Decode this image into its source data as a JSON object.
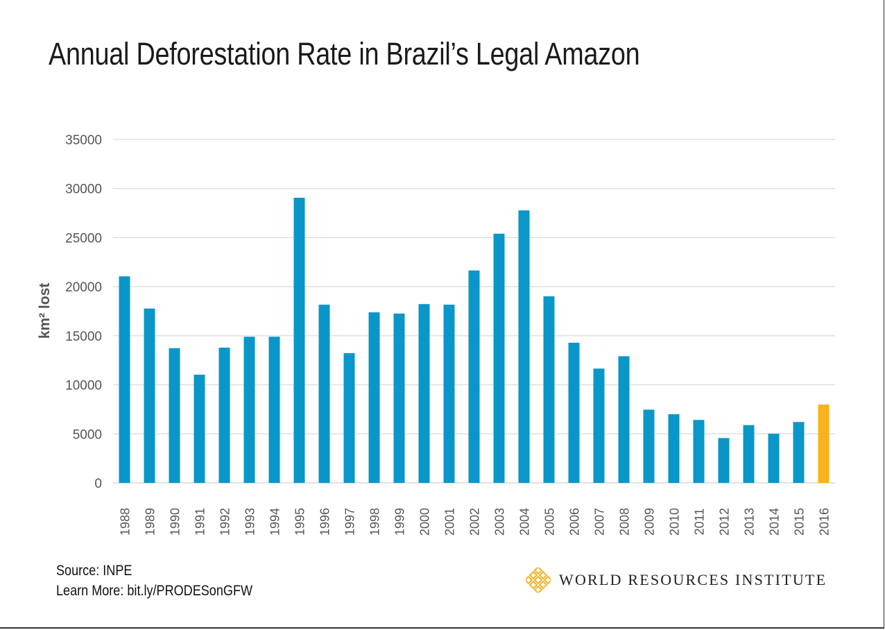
{
  "title": "Annual Deforestation Rate in Brazil’s Legal Amazon",
  "footer": {
    "source": "Source: INPE",
    "learn_more": "Learn More: bit.ly/PRODESonGFW"
  },
  "logo": {
    "text": "WORLD RESOURCES INSTITUTE",
    "icon": "wri-star-icon",
    "color": "#F4B223"
  },
  "colors": {
    "bar": "#0897C8",
    "highlight": "#F9B21E",
    "grid": "#D9D9D9",
    "axis_text": "#555555"
  },
  "chart_data": {
    "type": "bar",
    "title": "Annual Deforestation Rate in Brazil’s Legal Amazon",
    "xlabel": "",
    "ylabel": "km² lost",
    "ylim": [
      0,
      35000
    ],
    "yticks": [
      0,
      5000,
      10000,
      15000,
      20000,
      25000,
      30000,
      35000
    ],
    "grid": true,
    "categories": [
      "1988",
      "1989",
      "1990",
      "1991",
      "1992",
      "1993",
      "1994",
      "1995",
      "1996",
      "1997",
      "1998",
      "1999",
      "2000",
      "2001",
      "2002",
      "2003",
      "2004",
      "2005",
      "2006",
      "2007",
      "2008",
      "2009",
      "2010",
      "2011",
      "2012",
      "2013",
      "2014",
      "2015",
      "2016"
    ],
    "values": [
      21050,
      17770,
      13730,
      11030,
      13786,
      14896,
      14896,
      29059,
      18161,
      13227,
      17383,
      17259,
      18226,
      18165,
      21651,
      25396,
      27772,
      19014,
      14286,
      11651,
      12911,
      7464,
      7000,
      6418,
      4571,
      5891,
      5012,
      6207,
      7989
    ],
    "highlight_index": 28
  }
}
